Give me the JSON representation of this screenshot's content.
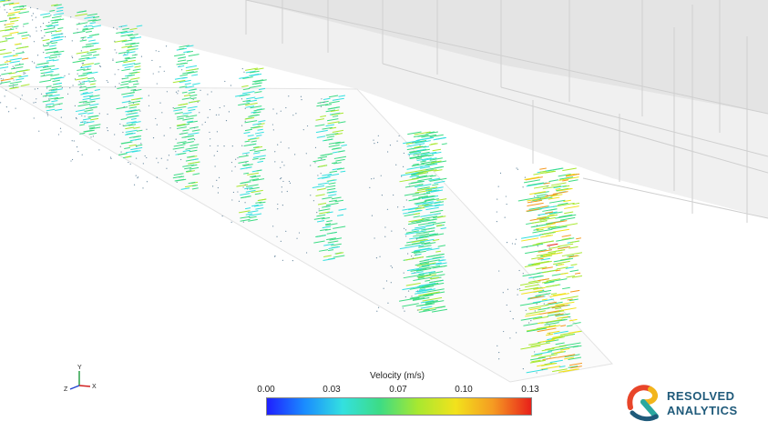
{
  "legend": {
    "title": "Velocity (m/s)",
    "ticks": [
      "0.00",
      "0.03",
      "0.07",
      "0.10",
      "0.13"
    ],
    "stops": [
      "#1f1fff",
      "#1a8cff",
      "#33e0e0",
      "#3ddc84",
      "#a8e830",
      "#f2e21c",
      "#f59a22",
      "#e8201a"
    ]
  },
  "axes": {
    "y": "Y",
    "z": "Z",
    "x": "X"
  },
  "logo": {
    "line1": "RESOLVED",
    "line2": "ANALYTICS",
    "colors": [
      "#e8452a",
      "#f2b51c",
      "#2aa8a0",
      "#1f5a7a"
    ]
  }
}
